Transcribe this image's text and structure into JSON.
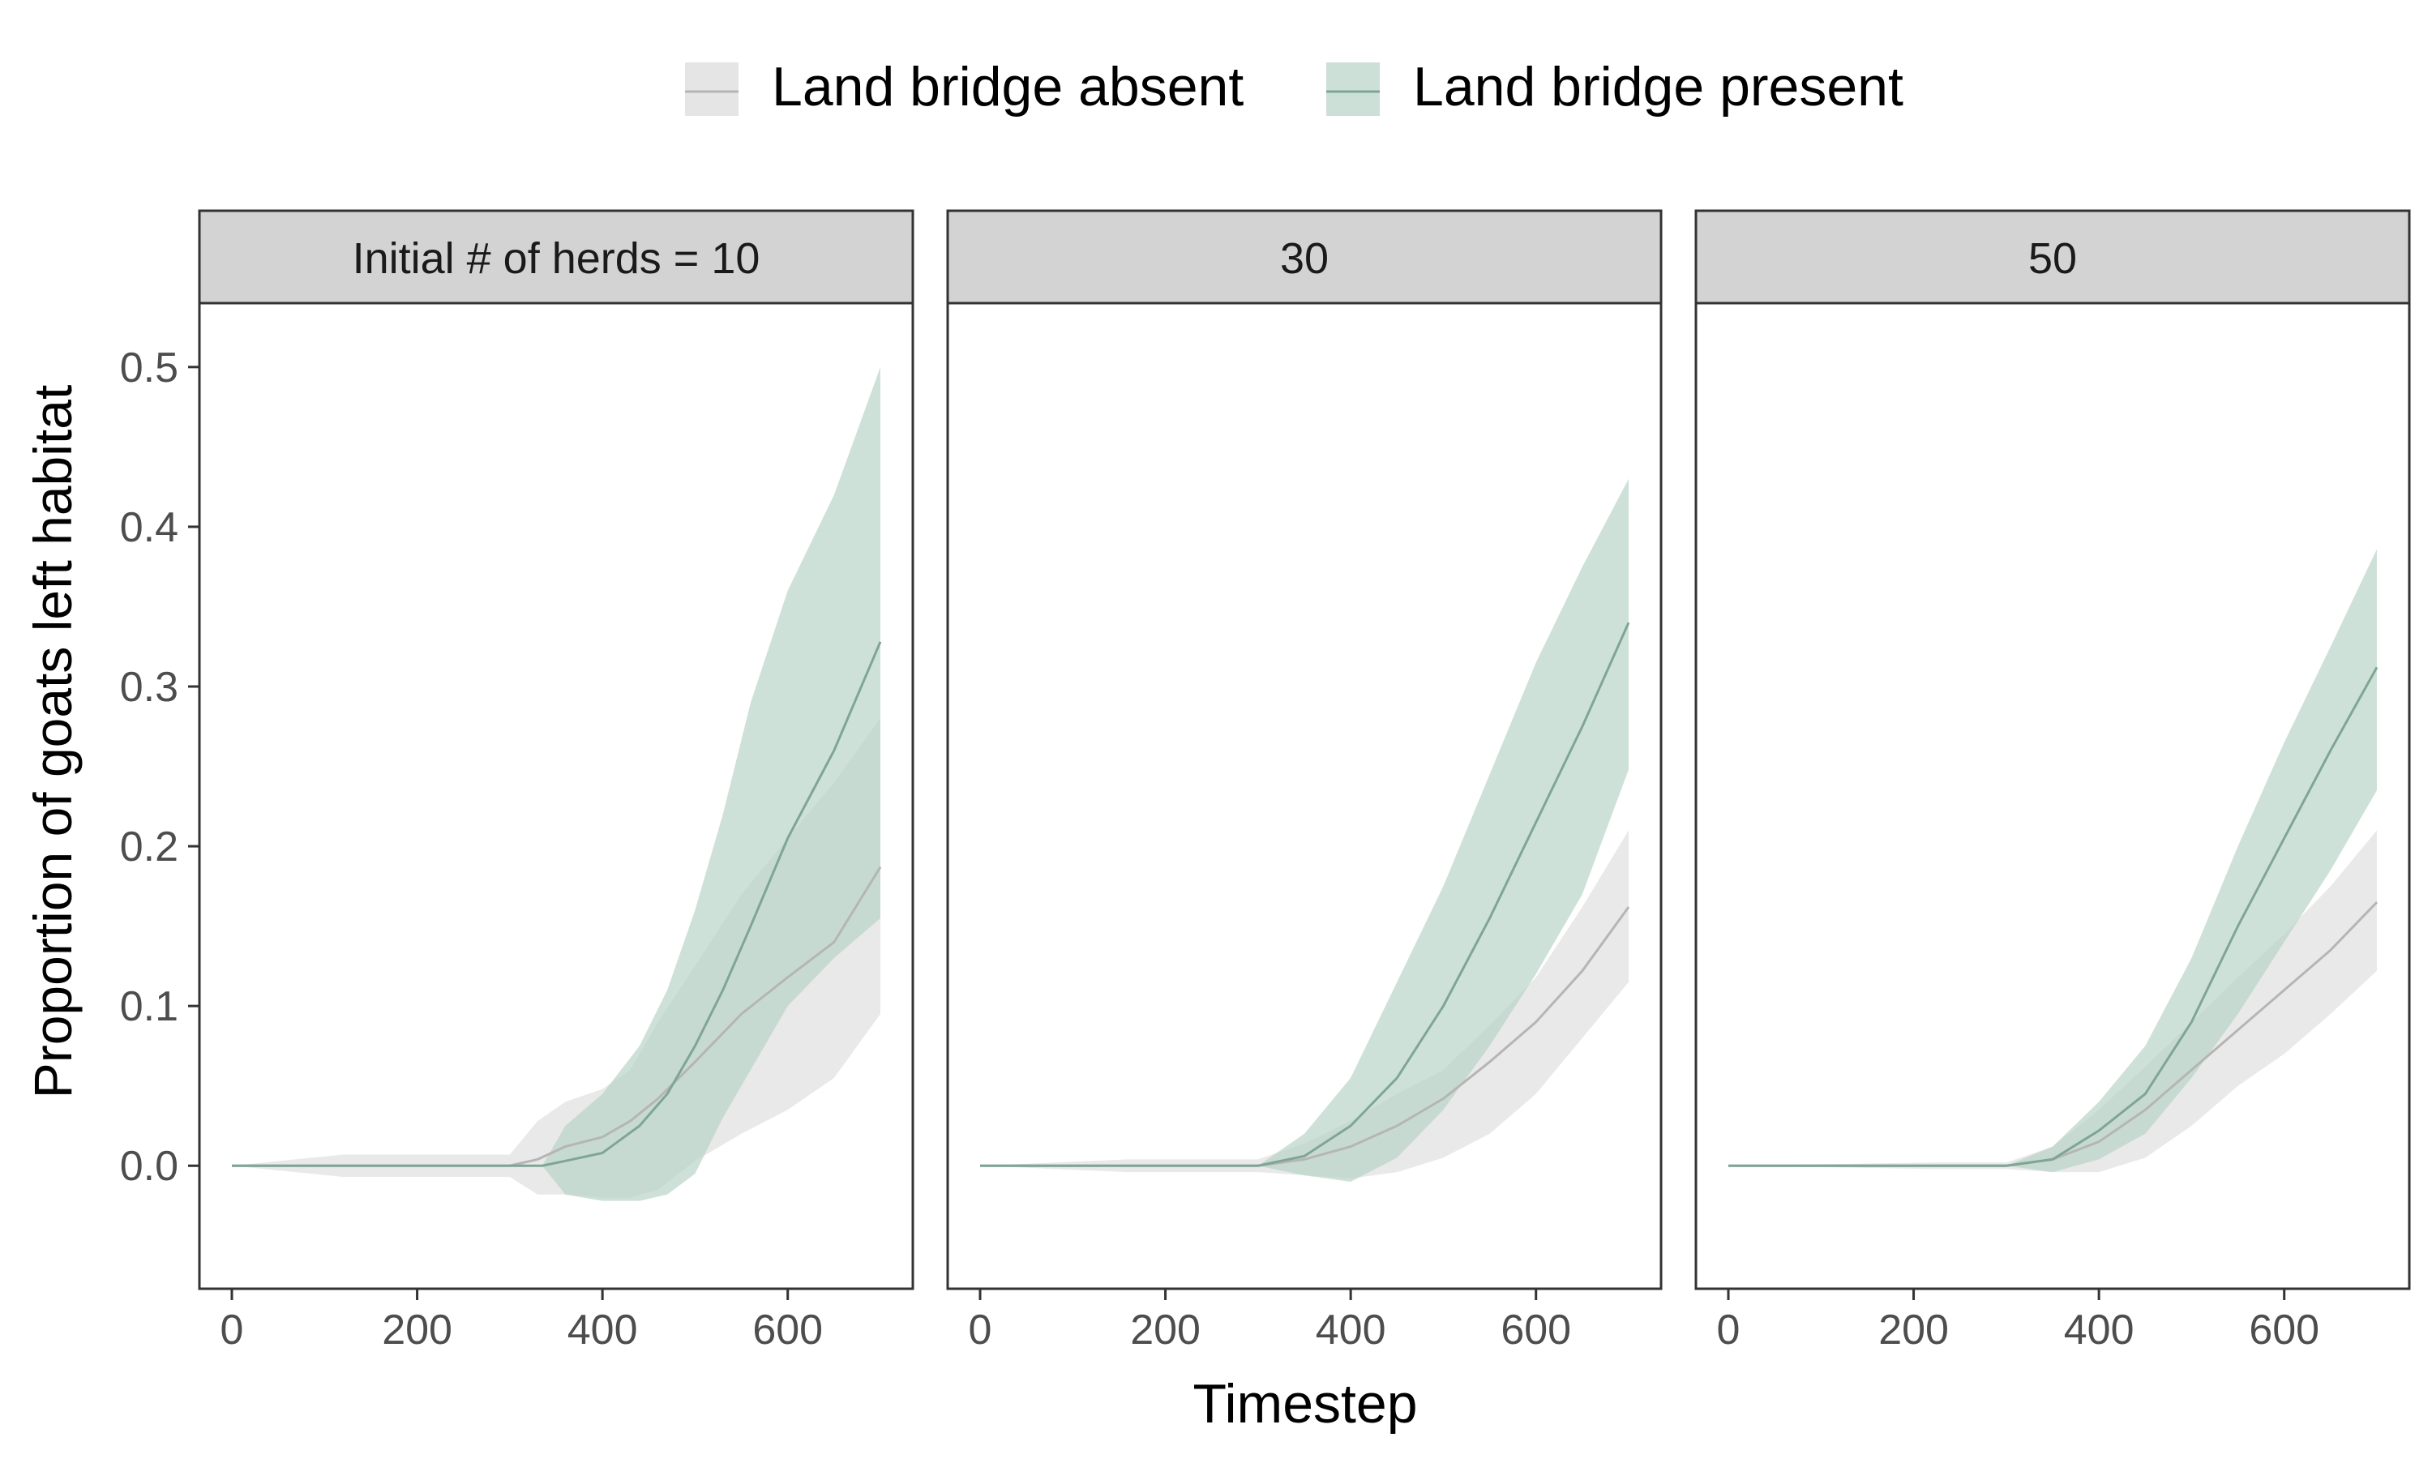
{
  "legend": {
    "items": [
      {
        "label": "Land bridge absent",
        "line_color": "#b5b5b5",
        "fill_color": "#e5e5e5"
      },
      {
        "label": "Land bridge present",
        "line_color": "#7fa595",
        "fill_color": "#cde0d8"
      }
    ]
  },
  "axes": {
    "xlabel": "Timestep",
    "ylabel": "Proportion of goats left habitat"
  },
  "colors": {
    "absent_line": "#b5b5b5",
    "absent_fill": "#e5e5e5",
    "present_line": "#7fa595",
    "present_fill": "#b7d3c6",
    "strip_bg": "#d3d3d3",
    "frame": "#333333",
    "tick_text": "#4d4d4d"
  },
  "chart_data": [
    {
      "type": "line",
      "facet_label": "Initial # of herds = 10",
      "x_ticks": [
        0,
        200,
        400,
        600
      ],
      "y_ticks": [
        "0.0",
        "0.1",
        "0.2",
        "0.3",
        "0.4",
        "0.5"
      ],
      "xlim": [
        -35,
        735
      ],
      "ylim": [
        -0.077,
        0.54
      ],
      "series": [
        {
          "name": "Land bridge absent",
          "x": [
            0,
            120,
            300,
            330,
            360,
            400,
            430,
            460,
            500,
            550,
            600,
            650,
            700
          ],
          "y": [
            0,
            0,
            0,
            0.004,
            0.012,
            0.018,
            0.028,
            0.042,
            0.065,
            0.095,
            0.118,
            0.14,
            0.187
          ],
          "lower": [
            0,
            -0.007,
            -0.007,
            -0.018,
            -0.018,
            -0.02,
            -0.02,
            -0.015,
            0.003,
            0.02,
            0.035,
            0.055,
            0.095
          ],
          "upper": [
            0,
            0.007,
            0.007,
            0.028,
            0.04,
            0.048,
            0.06,
            0.09,
            0.125,
            0.17,
            0.205,
            0.24,
            0.28
          ]
        },
        {
          "name": "Land bridge present",
          "x": [
            0,
            120,
            300,
            335,
            360,
            400,
            440,
            470,
            500,
            530,
            560,
            600,
            650,
            700
          ],
          "y": [
            0,
            0,
            0,
            0,
            0.003,
            0.008,
            0.025,
            0.045,
            0.075,
            0.11,
            0.15,
            0.205,
            0.26,
            0.328
          ],
          "lower": [
            0,
            0,
            0,
            0,
            -0.018,
            -0.022,
            -0.022,
            -0.018,
            -0.005,
            0.03,
            0.06,
            0.1,
            0.13,
            0.155
          ],
          "upper": [
            0,
            0,
            0,
            0,
            0.025,
            0.045,
            0.075,
            0.11,
            0.16,
            0.22,
            0.29,
            0.36,
            0.42,
            0.5
          ]
        }
      ]
    },
    {
      "type": "line",
      "facet_label": "30",
      "x_ticks": [
        0,
        200,
        400,
        600
      ],
      "y_ticks": [
        "0.0",
        "0.1",
        "0.2",
        "0.3",
        "0.4",
        "0.5"
      ],
      "xlim": [
        -35,
        735
      ],
      "ylim": [
        -0.077,
        0.54
      ],
      "series": [
        {
          "name": "Land bridge absent",
          "x": [
            0,
            160,
            300,
            350,
            400,
            450,
            500,
            550,
            600,
            650,
            700
          ],
          "y": [
            0,
            0,
            0,
            0.004,
            0.012,
            0.025,
            0.042,
            0.065,
            0.09,
            0.122,
            0.162
          ],
          "lower": [
            0,
            -0.004,
            -0.004,
            -0.006,
            -0.008,
            -0.004,
            0.005,
            0.02,
            0.045,
            0.08,
            0.115
          ],
          "upper": [
            0,
            0.004,
            0.004,
            0.014,
            0.028,
            0.045,
            0.06,
            0.088,
            0.118,
            0.162,
            0.21
          ]
        },
        {
          "name": "Land bridge present",
          "x": [
            0,
            160,
            300,
            350,
            400,
            450,
            500,
            550,
            600,
            650,
            700
          ],
          "y": [
            0,
            0,
            0,
            0.006,
            0.025,
            0.055,
            0.1,
            0.155,
            0.215,
            0.275,
            0.34
          ],
          "lower": [
            0,
            0,
            0,
            -0.006,
            -0.01,
            0.005,
            0.035,
            0.075,
            0.12,
            0.17,
            0.248
          ],
          "upper": [
            0,
            0,
            0,
            0.02,
            0.055,
            0.115,
            0.175,
            0.245,
            0.315,
            0.375,
            0.43
          ]
        }
      ]
    },
    {
      "type": "line",
      "facet_label": "50",
      "x_ticks": [
        0,
        200,
        400,
        600
      ],
      "y_ticks": [
        "0.0",
        "0.1",
        "0.2",
        "0.3",
        "0.4",
        "0.5"
      ],
      "xlim": [
        -35,
        735
      ],
      "ylim": [
        -0.077,
        0.54
      ],
      "series": [
        {
          "name": "Land bridge absent",
          "x": [
            0,
            220,
            300,
            350,
            400,
            450,
            500,
            550,
            600,
            650,
            700
          ],
          "y": [
            0,
            0,
            0,
            0.004,
            0.015,
            0.035,
            0.06,
            0.085,
            0.11,
            0.135,
            0.165
          ],
          "lower": [
            0,
            -0.002,
            -0.002,
            -0.004,
            -0.004,
            0.005,
            0.025,
            0.05,
            0.07,
            0.095,
            0.122
          ],
          "upper": [
            0,
            0.002,
            0.002,
            0.012,
            0.035,
            0.062,
            0.09,
            0.118,
            0.145,
            0.175,
            0.21
          ]
        },
        {
          "name": "Land bridge present",
          "x": [
            0,
            220,
            300,
            350,
            400,
            450,
            500,
            550,
            600,
            650,
            700
          ],
          "y": [
            0,
            0,
            0,
            0.004,
            0.022,
            0.045,
            0.09,
            0.15,
            0.205,
            0.26,
            0.312
          ],
          "lower": [
            0,
            0,
            0,
            -0.004,
            0.004,
            0.02,
            0.055,
            0.095,
            0.14,
            0.185,
            0.235
          ],
          "upper": [
            0,
            0,
            0,
            0.012,
            0.04,
            0.075,
            0.13,
            0.2,
            0.265,
            0.325,
            0.386
          ]
        }
      ]
    }
  ]
}
